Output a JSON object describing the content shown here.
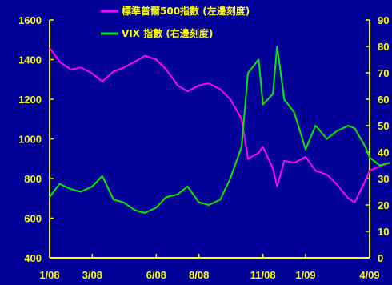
{
  "chart_data": {
    "type": "line",
    "title": "",
    "xlabel": "",
    "x_tick_labels": [
      "1/08",
      "3/08",
      "6/08",
      "8/08",
      "11/08",
      "1/09",
      "4/09"
    ],
    "x_range": [
      "2008-01",
      "2009-04"
    ],
    "y_left": {
      "label": "",
      "ticks": [
        "400",
        "600",
        "800",
        "1000",
        "1200",
        "1400",
        "1600"
      ],
      "range": [
        400,
        1600
      ]
    },
    "y_right": {
      "label": "",
      "ticks": [
        "0",
        "10",
        "20",
        "30",
        "40",
        "50",
        "60",
        "70",
        "80",
        "90"
      ],
      "range": [
        0,
        90
      ]
    },
    "legend": {
      "placement": "top-center"
    },
    "grid": false,
    "series": [
      {
        "name": "標準普爾500指數 (左邊刻度)",
        "axis": "left",
        "color": "#ff00ff",
        "points": [
          [
            "2008-01",
            1460
          ],
          [
            "2008-01-15",
            1390
          ],
          [
            "2008-02",
            1350
          ],
          [
            "2008-02-15",
            1360
          ],
          [
            "2008-03",
            1330
          ],
          [
            "2008-03-15",
            1290
          ],
          [
            "2008-04",
            1340
          ],
          [
            "2008-04-15",
            1360
          ],
          [
            "2008-05",
            1390
          ],
          [
            "2008-05-15",
            1420
          ],
          [
            "2008-06",
            1400
          ],
          [
            "2008-06-15",
            1350
          ],
          [
            "2008-07",
            1270
          ],
          [
            "2008-07-15",
            1240
          ],
          [
            "2008-08",
            1270
          ],
          [
            "2008-08-15",
            1280
          ],
          [
            "2008-09",
            1250
          ],
          [
            "2008-09-15",
            1200
          ],
          [
            "2008-10",
            1100
          ],
          [
            "2008-10-10",
            900
          ],
          [
            "2008-10-25",
            930
          ],
          [
            "2008-11",
            960
          ],
          [
            "2008-11-15",
            850
          ],
          [
            "2008-11-21",
            760
          ],
          [
            "2008-12",
            890
          ],
          [
            "2008-12-15",
            880
          ],
          [
            "2009-01",
            910
          ],
          [
            "2009-01-15",
            840
          ],
          [
            "2009-02",
            820
          ],
          [
            "2009-02-15",
            770
          ],
          [
            "2009-03",
            700
          ],
          [
            "2009-03-10",
            680
          ],
          [
            "2009-03-25",
            790
          ],
          [
            "2009-04",
            840
          ],
          [
            "2009-04-15",
            860
          ],
          [
            "2009-04-30",
            880
          ]
        ]
      },
      {
        "name": "VIX 指數 (右邊刻度)",
        "axis": "right",
        "color": "#00ee00",
        "points": [
          [
            "2008-01",
            23
          ],
          [
            "2008-01-15",
            28
          ],
          [
            "2008-02",
            26
          ],
          [
            "2008-02-15",
            25
          ],
          [
            "2008-03",
            27
          ],
          [
            "2008-03-15",
            31
          ],
          [
            "2008-04",
            22
          ],
          [
            "2008-04-15",
            21
          ],
          [
            "2008-05",
            18
          ],
          [
            "2008-05-15",
            17
          ],
          [
            "2008-06",
            19
          ],
          [
            "2008-06-15",
            23
          ],
          [
            "2008-07",
            24
          ],
          [
            "2008-07-15",
            27
          ],
          [
            "2008-08",
            21
          ],
          [
            "2008-08-15",
            20
          ],
          [
            "2008-09",
            22
          ],
          [
            "2008-09-15",
            30
          ],
          [
            "2008-10",
            42
          ],
          [
            "2008-10-10",
            70
          ],
          [
            "2008-10-25",
            75
          ],
          [
            "2008-11",
            58
          ],
          [
            "2008-11-15",
            62
          ],
          [
            "2008-11-21",
            80
          ],
          [
            "2008-12",
            60
          ],
          [
            "2008-12-15",
            55
          ],
          [
            "2009-01",
            41
          ],
          [
            "2009-01-15",
            50
          ],
          [
            "2009-02",
            45
          ],
          [
            "2009-02-15",
            48
          ],
          [
            "2009-03",
            50
          ],
          [
            "2009-03-10",
            49
          ],
          [
            "2009-03-25",
            42
          ],
          [
            "2009-04",
            38
          ],
          [
            "2009-04-15",
            35
          ],
          [
            "2009-04-30",
            36
          ]
        ]
      }
    ]
  }
}
